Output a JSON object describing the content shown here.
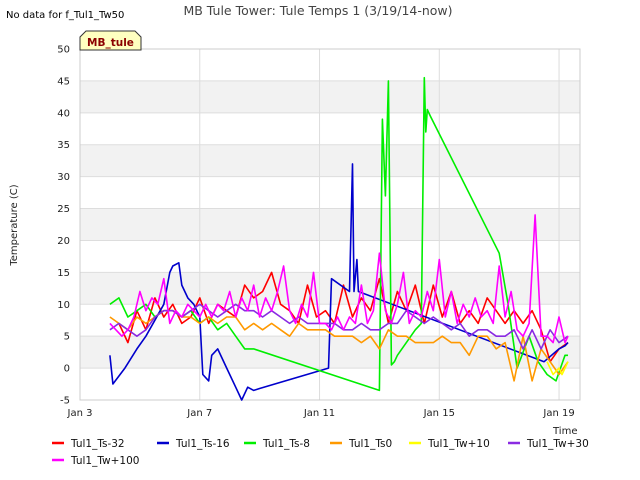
{
  "no_data_note": "No data for f_Tul1_Tw50",
  "station_label": "MB_tule",
  "chart_data": {
    "type": "line",
    "title": "MB Tule Tower: Tule Temps 1 (3/19/14-now)",
    "xlabel": "Time",
    "ylabel": "Temperature (C)",
    "xlim": [
      3,
      19.7
    ],
    "ylim": [
      -5,
      50
    ],
    "x_ticks": [
      {
        "value": 3,
        "label": "Jan 3"
      },
      {
        "value": 7,
        "label": "Jan 7"
      },
      {
        "value": 11,
        "label": "Jan 11"
      },
      {
        "value": 15,
        "label": "Jan 15"
      },
      {
        "value": 19,
        "label": "Jan 19"
      }
    ],
    "y_ticks": [
      -5,
      0,
      5,
      10,
      15,
      20,
      25,
      30,
      35,
      40,
      45,
      50
    ],
    "grid": true,
    "series": [
      {
        "name": "Tul1_Ts-32",
        "color": "#ff0000",
        "x": [
          4.3,
          4.6,
          4.9,
          5.2,
          5.5,
          5.8,
          6.1,
          6.4,
          6.7,
          7.0,
          7.3,
          7.6,
          7.9,
          8.2,
          8.5,
          8.8,
          9.1,
          9.4,
          9.7,
          10.0,
          10.3,
          10.6,
          10.9,
          11.2,
          11.5,
          11.8,
          12.1,
          12.4,
          12.7,
          13.0,
          13.3,
          13.6,
          13.9,
          14.2,
          14.5,
          14.8,
          15.1,
          15.4,
          15.7,
          16.0,
          16.3,
          16.6,
          16.9,
          17.2,
          17.5,
          17.8,
          18.1,
          18.4,
          18.7,
          19.0,
          19.3
        ],
        "y": [
          7,
          4,
          9,
          6,
          11,
          8,
          10,
          7,
          8,
          11,
          7,
          10,
          9,
          8,
          13,
          11,
          12,
          15,
          10,
          9,
          7,
          13,
          8,
          9,
          7,
          13,
          8,
          11,
          9,
          14,
          7,
          12,
          9,
          13,
          7,
          13,
          8,
          12,
          7,
          9,
          7,
          11,
          9,
          7,
          9,
          7,
          9,
          6,
          1,
          3,
          4
        ]
      },
      {
        "name": "Tul1_Ts-16",
        "color": "#0000cc",
        "x": [
          4.0,
          4.1,
          4.5,
          4.9,
          5.2,
          5.5,
          5.8,
          6.0,
          6.1,
          6.3,
          6.4,
          6.6,
          6.8,
          7.0,
          7.1,
          7.3,
          7.4,
          7.6,
          7.9,
          8.2,
          8.4,
          8.6,
          8.8,
          9.0,
          11.3,
          11.4,
          12.0,
          12.1,
          12.15,
          12.25,
          12.3,
          18.5,
          19.0,
          19.2,
          19.3
        ],
        "y": [
          2,
          -2.5,
          0,
          3,
          5,
          7.5,
          10,
          15,
          16,
          16.5,
          13,
          11,
          10,
          8,
          -1,
          -2,
          2,
          3,
          0,
          -3,
          -5,
          -3,
          -3.5,
          -3.2,
          0,
          14,
          12,
          32,
          12,
          17,
          12,
          1,
          3,
          3.5,
          4
        ]
      },
      {
        "name": "Tul1_Ts-8",
        "color": "#00ee00",
        "x": [
          4.0,
          4.3,
          4.6,
          4.9,
          5.2,
          5.5,
          5.8,
          6.1,
          6.4,
          6.7,
          7.0,
          7.3,
          7.6,
          7.9,
          8.2,
          8.5,
          8.8,
          13.0,
          13.1,
          13.2,
          13.3,
          13.4,
          13.5,
          13.6,
          14.2,
          14.4,
          14.5,
          14.55,
          14.6,
          14.7,
          17.0,
          17.3,
          17.6,
          18.0,
          18.3,
          18.6,
          18.9,
          19.2,
          19.3
        ],
        "y": [
          10,
          11,
          8,
          9,
          10,
          8,
          9,
          9,
          8,
          9,
          7,
          8,
          6,
          7,
          5,
          3,
          3,
          -3.5,
          39,
          27,
          45,
          0.5,
          1,
          2,
          6,
          7,
          45.5,
          37,
          40.5,
          39.5,
          18,
          10,
          0,
          5,
          1,
          -1,
          -2,
          2,
          2
        ]
      },
      {
        "name": "Tul1_Ts0",
        "color": "#ff9900",
        "x": [
          4.0,
          4.3,
          4.6,
          4.9,
          5.2,
          5.5,
          5.8,
          6.1,
          6.4,
          6.7,
          7.0,
          7.3,
          7.6,
          7.9,
          8.2,
          8.5,
          8.8,
          9.1,
          9.4,
          9.7,
          10.0,
          10.3,
          10.6,
          10.9,
          11.2,
          11.5,
          11.8,
          12.1,
          12.4,
          12.7,
          13.0,
          13.3,
          13.6,
          13.9,
          14.2,
          14.5,
          14.8,
          15.1,
          15.4,
          15.7,
          16.0,
          16.3,
          16.6,
          16.9,
          17.2,
          17.5,
          17.8,
          18.1,
          18.4,
          18.7,
          19.0,
          19.3
        ],
        "y": [
          8,
          7,
          6,
          8,
          7,
          8,
          9,
          9,
          8,
          8,
          7,
          8,
          7,
          8,
          8,
          6,
          7,
          6,
          7,
          6,
          5,
          7,
          6,
          6,
          6,
          5,
          5,
          5,
          4,
          5,
          3,
          6,
          5,
          5,
          4,
          4,
          4,
          5,
          4,
          4,
          2,
          5,
          5,
          3,
          4,
          -2,
          5,
          -2,
          3,
          1,
          -1,
          1
        ]
      },
      {
        "name": "Tul1_Tw+10",
        "color": "#ffff00",
        "x": [
          18.6,
          18.8,
          19.0,
          19.1,
          19.2,
          19.3
        ],
        "y": [
          1,
          -1,
          0,
          -1,
          0,
          1
        ]
      },
      {
        "name": "Tul1_Tw+30",
        "color": "#8a2be2",
        "x": [
          4.0,
          4.3,
          4.6,
          4.9,
          5.2,
          5.5,
          5.8,
          6.1,
          6.4,
          6.7,
          7.0,
          7.3,
          7.6,
          7.9,
          8.2,
          8.5,
          8.8,
          9.1,
          9.4,
          9.7,
          10.0,
          10.3,
          10.6,
          10.9,
          11.2,
          11.5,
          11.8,
          12.1,
          12.4,
          12.7,
          13.0,
          13.3,
          13.6,
          13.9,
          14.2,
          14.5,
          14.8,
          15.1,
          15.4,
          15.7,
          16.0,
          16.3,
          16.6,
          16.9,
          17.2,
          17.5,
          17.8,
          18.1,
          18.4,
          18.7,
          19.0,
          19.3
        ],
        "y": [
          6,
          7,
          6,
          5,
          6,
          8,
          9,
          9,
          8,
          9,
          10,
          9,
          8,
          9,
          10,
          9,
          9,
          8,
          9,
          8,
          7,
          8,
          7,
          7,
          7,
          7,
          6,
          6,
          7,
          6,
          6,
          7,
          7,
          9,
          8,
          7,
          8,
          7,
          6,
          7,
          5,
          6,
          6,
          5,
          5,
          6,
          3,
          6,
          3,
          6,
          4,
          5
        ]
      },
      {
        "name": "Tul1_Tw+100",
        "color": "#ff00ff",
        "x": [
          4.0,
          4.2,
          4.4,
          4.6,
          4.8,
          5.0,
          5.2,
          5.4,
          5.6,
          5.8,
          6.0,
          6.2,
          6.4,
          6.6,
          6.8,
          7.0,
          7.2,
          7.4,
          7.6,
          7.8,
          8.0,
          8.2,
          8.4,
          8.6,
          8.8,
          9.0,
          9.2,
          9.4,
          9.6,
          9.8,
          10.0,
          10.2,
          10.4,
          10.6,
          10.8,
          11.0,
          11.2,
          11.4,
          11.6,
          11.8,
          12.0,
          12.2,
          12.4,
          12.6,
          12.8,
          13.0,
          13.2,
          13.4,
          13.6,
          13.8,
          14.0,
          14.2,
          14.4,
          14.6,
          14.8,
          15.0,
          15.2,
          15.4,
          15.6,
          15.8,
          16.0,
          16.2,
          16.4,
          16.6,
          16.8,
          17.0,
          17.2,
          17.4,
          17.6,
          17.8,
          18.0,
          18.2,
          18.4,
          18.6,
          18.8,
          19.0,
          19.2,
          19.3
        ],
        "y": [
          7,
          6,
          5,
          6,
          8,
          12,
          9,
          11,
          10,
          14,
          7,
          9,
          8,
          10,
          9,
          8,
          10,
          8,
          10,
          9,
          12,
          8,
          11,
          9,
          13,
          8,
          11,
          9,
          12,
          16,
          9,
          7,
          10,
          8,
          15,
          7,
          7,
          6,
          8,
          6,
          8,
          7,
          13,
          7,
          9,
          18,
          9,
          7,
          10,
          15,
          7,
          9,
          8,
          12,
          9,
          17,
          8,
          12,
          7,
          10,
          8,
          11,
          8,
          9,
          7,
          16,
          8,
          12,
          6,
          5,
          7,
          24,
          5,
          5,
          4,
          8,
          4,
          5
        ]
      }
    ]
  }
}
